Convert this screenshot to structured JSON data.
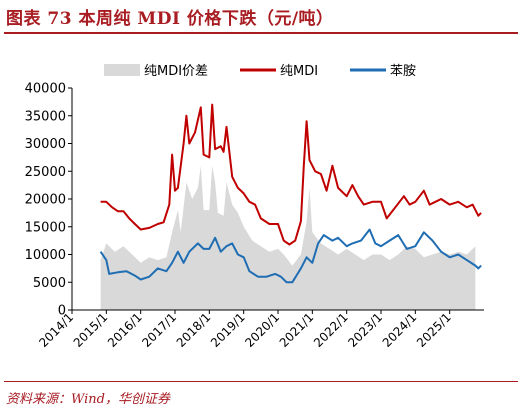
{
  "header": {
    "title": "图表 73 本周纯 MDI 价格下跌（元/吨）"
  },
  "footer": {
    "source": "资料来源：Wind，华创证券"
  },
  "colors": {
    "spread": "#d9d9d9",
    "mdi": "#c00000",
    "aniline": "#1f6db3",
    "accent": "#a81c22"
  },
  "chart_data": {
    "type": "area",
    "title": "",
    "xlabel": "",
    "ylabel": "",
    "ylim": [
      0,
      40000
    ],
    "yticks": [
      0,
      5000,
      10000,
      15000,
      20000,
      25000,
      30000,
      35000,
      40000
    ],
    "xlim": [
      "2014-01",
      "2025-12"
    ],
    "xticks": [
      "2014/1",
      "2015/1",
      "2016/1",
      "2017/1",
      "2018/1",
      "2019/1",
      "2020/1",
      "2021/1",
      "2022/1",
      "2023/1",
      "2024/1",
      "2025/1"
    ],
    "legend_position": "top",
    "grid": false,
    "series": [
      {
        "name": "纯MDI价差",
        "type": "area",
        "color": "#d9d9d9",
        "points": [
          [
            "2014-11",
            9000
          ],
          [
            "2015-01",
            12000
          ],
          [
            "2015-04",
            10500
          ],
          [
            "2015-07",
            11500
          ],
          [
            "2015-10",
            10000
          ],
          [
            "2016-01",
            8500
          ],
          [
            "2016-04",
            9500
          ],
          [
            "2016-07",
            9000
          ],
          [
            "2016-10",
            9500
          ],
          [
            "2016-12",
            14000
          ],
          [
            "2017-02",
            18000
          ],
          [
            "2017-03",
            14000
          ],
          [
            "2017-05",
            23000
          ],
          [
            "2017-07",
            20000
          ],
          [
            "2017-09",
            22000
          ],
          [
            "2017-10",
            26000
          ],
          [
            "2017-11",
            18000
          ],
          [
            "2018-01",
            18000
          ],
          [
            "2018-02",
            26000
          ],
          [
            "2018-03",
            23000
          ],
          [
            "2018-04",
            17500
          ],
          [
            "2018-06",
            17000
          ],
          [
            "2018-07",
            23000
          ],
          [
            "2018-09",
            19000
          ],
          [
            "2018-11",
            17500
          ],
          [
            "2019-01",
            15000
          ],
          [
            "2019-04",
            12500
          ],
          [
            "2019-07",
            11500
          ],
          [
            "2019-10",
            10500
          ],
          [
            "2020-01",
            11000
          ],
          [
            "2020-03",
            10000
          ],
          [
            "2020-06",
            8000
          ],
          [
            "2020-09",
            10000
          ],
          [
            "2020-11",
            16000
          ],
          [
            "2020-12",
            22000
          ],
          [
            "2021-01",
            14000
          ],
          [
            "2021-04",
            12000
          ],
          [
            "2021-07",
            11000
          ],
          [
            "2021-10",
            10000
          ],
          [
            "2022-01",
            11000
          ],
          [
            "2022-04",
            10000
          ],
          [
            "2022-07",
            9000
          ],
          [
            "2022-10",
            10000
          ],
          [
            "2023-01",
            10000
          ],
          [
            "2023-04",
            9000
          ],
          [
            "2023-07",
            10000
          ],
          [
            "2023-10",
            11500
          ],
          [
            "2024-01",
            11000
          ],
          [
            "2024-04",
            9500
          ],
          [
            "2024-07",
            10000
          ],
          [
            "2024-10",
            10500
          ],
          [
            "2025-01",
            10000
          ],
          [
            "2025-04",
            10500
          ],
          [
            "2025-07",
            10000
          ],
          [
            "2025-10",
            11500
          ]
        ]
      },
      {
        "name": "纯MDI",
        "type": "line",
        "color": "#c00000",
        "points": [
          [
            "2014-11",
            19500
          ],
          [
            "2015-01",
            19500
          ],
          [
            "2015-03",
            18500
          ],
          [
            "2015-05",
            17800
          ],
          [
            "2015-07",
            17800
          ],
          [
            "2015-09",
            16500
          ],
          [
            "2015-11",
            15500
          ],
          [
            "2016-01",
            14500
          ],
          [
            "2016-04",
            14800
          ],
          [
            "2016-07",
            15500
          ],
          [
            "2016-09",
            15800
          ],
          [
            "2016-11",
            19000
          ],
          [
            "2016-12",
            28000
          ],
          [
            "2017-01",
            21500
          ],
          [
            "2017-02",
            22000
          ],
          [
            "2017-04",
            30000
          ],
          [
            "2017-05",
            35000
          ],
          [
            "2017-06",
            30000
          ],
          [
            "2017-08",
            32000
          ],
          [
            "2017-10",
            36500
          ],
          [
            "2017-11",
            28000
          ],
          [
            "2018-01",
            27500
          ],
          [
            "2018-02",
            37000
          ],
          [
            "2018-03",
            29000
          ],
          [
            "2018-05",
            29500
          ],
          [
            "2018-06",
            28500
          ],
          [
            "2018-07",
            33000
          ],
          [
            "2018-09",
            24000
          ],
          [
            "2018-11",
            22000
          ],
          [
            "2019-01",
            21000
          ],
          [
            "2019-03",
            19500
          ],
          [
            "2019-05",
            19000
          ],
          [
            "2019-07",
            16500
          ],
          [
            "2019-10",
            15500
          ],
          [
            "2020-01",
            15500
          ],
          [
            "2020-03",
            12500
          ],
          [
            "2020-05",
            11800
          ],
          [
            "2020-07",
            12500
          ],
          [
            "2020-09",
            16000
          ],
          [
            "2020-10",
            26000
          ],
          [
            "2020-11",
            34000
          ],
          [
            "2020-12",
            27000
          ],
          [
            "2021-02",
            25000
          ],
          [
            "2021-04",
            24500
          ],
          [
            "2021-06",
            21500
          ],
          [
            "2021-08",
            26000
          ],
          [
            "2021-10",
            22000
          ],
          [
            "2022-01",
            20500
          ],
          [
            "2022-03",
            22500
          ],
          [
            "2022-05",
            20500
          ],
          [
            "2022-07",
            19000
          ],
          [
            "2022-10",
            19500
          ],
          [
            "2023-01",
            19500
          ],
          [
            "2023-03",
            16500
          ],
          [
            "2023-06",
            18500
          ],
          [
            "2023-09",
            20500
          ],
          [
            "2023-11",
            19000
          ],
          [
            "2024-01",
            19500
          ],
          [
            "2024-04",
            21500
          ],
          [
            "2024-06",
            19000
          ],
          [
            "2024-08",
            19500
          ],
          [
            "2024-10",
            20000
          ],
          [
            "2025-01",
            19000
          ],
          [
            "2025-04",
            19500
          ],
          [
            "2025-07",
            18500
          ],
          [
            "2025-09",
            19000
          ],
          [
            "2025-11",
            17000
          ],
          [
            "2025-12",
            17500
          ]
        ]
      },
      {
        "name": "苯胺",
        "type": "line",
        "color": "#1f6db3",
        "points": [
          [
            "2014-11",
            10500
          ],
          [
            "2015-01",
            9000
          ],
          [
            "2015-02",
            6500
          ],
          [
            "2015-05",
            6800
          ],
          [
            "2015-08",
            7000
          ],
          [
            "2015-11",
            6200
          ],
          [
            "2016-01",
            5500
          ],
          [
            "2016-04",
            6000
          ],
          [
            "2016-07",
            7500
          ],
          [
            "2016-10",
            7000
          ],
          [
            "2016-12",
            8500
          ],
          [
            "2017-02",
            10500
          ],
          [
            "2017-04",
            8500
          ],
          [
            "2017-06",
            10500
          ],
          [
            "2017-09",
            12000
          ],
          [
            "2017-11",
            11000
          ],
          [
            "2018-01",
            11000
          ],
          [
            "2018-03",
            13000
          ],
          [
            "2018-05",
            10500
          ],
          [
            "2018-07",
            11500
          ],
          [
            "2018-09",
            12000
          ],
          [
            "2018-11",
            10000
          ],
          [
            "2019-01",
            9500
          ],
          [
            "2019-03",
            7000
          ],
          [
            "2019-06",
            6000
          ],
          [
            "2019-09",
            6000
          ],
          [
            "2019-12",
            6500
          ],
          [
            "2020-02",
            6000
          ],
          [
            "2020-04",
            5000
          ],
          [
            "2020-06",
            5000
          ],
          [
            "2020-09",
            7500
          ],
          [
            "2020-11",
            9500
          ],
          [
            "2021-01",
            8500
          ],
          [
            "2021-03",
            12000
          ],
          [
            "2021-05",
            13500
          ],
          [
            "2021-08",
            12500
          ],
          [
            "2021-10",
            13000
          ],
          [
            "2022-01",
            11500
          ],
          [
            "2022-03",
            12000
          ],
          [
            "2022-06",
            12500
          ],
          [
            "2022-09",
            14500
          ],
          [
            "2022-11",
            12000
          ],
          [
            "2023-01",
            11500
          ],
          [
            "2023-04",
            12500
          ],
          [
            "2023-07",
            13500
          ],
          [
            "2023-10",
            11000
          ],
          [
            "2024-01",
            11500
          ],
          [
            "2024-04",
            14000
          ],
          [
            "2024-07",
            12500
          ],
          [
            "2024-10",
            10500
          ],
          [
            "2025-01",
            9500
          ],
          [
            "2025-04",
            10000
          ],
          [
            "2025-07",
            9000
          ],
          [
            "2025-10",
            8000
          ],
          [
            "2025-11",
            7500
          ],
          [
            "2025-12",
            8000
          ]
        ]
      }
    ]
  }
}
